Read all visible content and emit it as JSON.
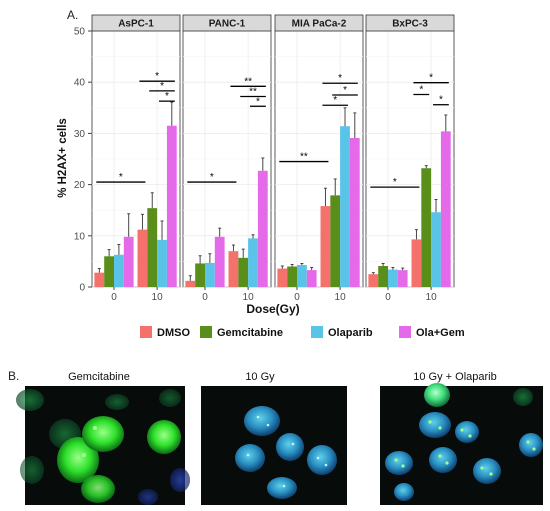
{
  "panel_a_label": "A.",
  "panel_b_label": "B.",
  "chart_data": {
    "type": "bar",
    "facets": [
      "AsPC-1",
      "PANC-1",
      "MIA PaCa-2",
      "BxPC-3"
    ],
    "x_categories": [
      "0",
      "10"
    ],
    "xlabel": "Dose(Gy)",
    "ylabel": "% H2AX+ cells",
    "ylim": [
      0,
      50
    ],
    "yticks": [
      0,
      10,
      20,
      30,
      40,
      50
    ],
    "legend": {
      "position": "bottom"
    },
    "colors": {
      "DMSO": "#f4726b",
      "Gemcitabine": "#5a8e1a",
      "Olaparib": "#59c3e8",
      "Ola+Gem": "#e46ae9"
    },
    "series": [
      {
        "name": "DMSO",
        "values": [
          [
            2.8,
            11.2
          ],
          [
            1.2,
            7.0
          ],
          [
            3.6,
            15.8
          ],
          [
            2.5,
            9.3
          ]
        ],
        "errors": [
          [
            0.8,
            3.0
          ],
          [
            1.0,
            1.2
          ],
          [
            0.5,
            3.5
          ],
          [
            0.3,
            1.9
          ]
        ]
      },
      {
        "name": "Gemcitabine",
        "values": [
          [
            6.0,
            15.4
          ],
          [
            4.6,
            5.7
          ],
          [
            4.0,
            17.9
          ],
          [
            4.1,
            23.2
          ]
        ],
        "errors": [
          [
            1.3,
            3.0
          ],
          [
            1.5,
            1.7
          ],
          [
            0.4,
            3.2
          ],
          [
            0.5,
            0.5
          ]
        ]
      },
      {
        "name": "Olaparib",
        "values": [
          [
            6.3,
            9.2
          ],
          [
            4.7,
            9.5
          ],
          [
            4.3,
            31.4
          ],
          [
            3.4,
            14.6
          ]
        ],
        "errors": [
          [
            2.0,
            3.7
          ],
          [
            1.8,
            0.7
          ],
          [
            0.3,
            3.6
          ],
          [
            0.4,
            2.5
          ]
        ]
      },
      {
        "name": "Ola+Gem",
        "values": [
          [
            9.8,
            31.5
          ],
          [
            9.8,
            22.7
          ],
          [
            3.3,
            29.1
          ],
          [
            3.3,
            30.4
          ]
        ],
        "errors": [
          [
            4.5,
            4.6
          ],
          [
            1.7,
            2.5
          ],
          [
            0.5,
            4.9
          ],
          [
            0.4,
            3.2
          ]
        ]
      }
    ],
    "significance": [
      [
        {
          "from": [
            0,
            0
          ],
          "to": [
            1,
            0
          ],
          "y": 20.5,
          "label": "*"
        },
        {
          "from": [
            1,
            0
          ],
          "to": [
            1,
            3
          ],
          "y": 40.2,
          "label": "*"
        },
        {
          "from": [
            1,
            1
          ],
          "to": [
            1,
            3
          ],
          "y": 38.3,
          "label": "*"
        },
        {
          "from": [
            1,
            2
          ],
          "to": [
            1,
            3
          ],
          "y": 36.3,
          "label": "*"
        }
      ],
      [
        {
          "from": [
            0,
            0
          ],
          "to": [
            1,
            0
          ],
          "y": 20.5,
          "label": "*"
        },
        {
          "from": [
            1,
            0
          ],
          "to": [
            1,
            3
          ],
          "y": 39.2,
          "label": "**"
        },
        {
          "from": [
            1,
            1
          ],
          "to": [
            1,
            3
          ],
          "y": 37.2,
          "label": "**"
        },
        {
          "from": [
            1,
            2
          ],
          "to": [
            1,
            3
          ],
          "y": 35.3,
          "label": "*"
        }
      ],
      [
        {
          "from": [
            0,
            0
          ],
          "to": [
            1,
            0
          ],
          "y": 24.5,
          "label": "**"
        },
        {
          "from": [
            1,
            0
          ],
          "to": [
            1,
            3
          ],
          "y": 39.8,
          "label": "*"
        },
        {
          "from": [
            1,
            1
          ],
          "to": [
            1,
            3
          ],
          "y": 37.5,
          "label": "*"
        },
        {
          "from": [
            1,
            0
          ],
          "to": [
            1,
            2
          ],
          "y": 35.5,
          "label": "*"
        }
      ],
      [
        {
          "from": [
            0,
            0
          ],
          "to": [
            1,
            0
          ],
          "y": 19.5,
          "label": "*"
        },
        {
          "from": [
            1,
            0
          ],
          "to": [
            1,
            3
          ],
          "y": 39.9,
          "label": "*"
        },
        {
          "from": [
            1,
            0
          ],
          "to": [
            1,
            1
          ],
          "y": 37.6,
          "label": "*"
        },
        {
          "from": [
            1,
            2
          ],
          "to": [
            1,
            3
          ],
          "y": 35.6,
          "label": "*"
        }
      ]
    ]
  },
  "micrographs": [
    {
      "title": "Gemcitabine",
      "stain": "bright-green-nuclei"
    },
    {
      "title": "10 Gy",
      "stain": "cyan-nuclei-dim-foci"
    },
    {
      "title": "10 Gy + Olaparib",
      "stain": "cyan-nuclei-green-foci"
    }
  ]
}
